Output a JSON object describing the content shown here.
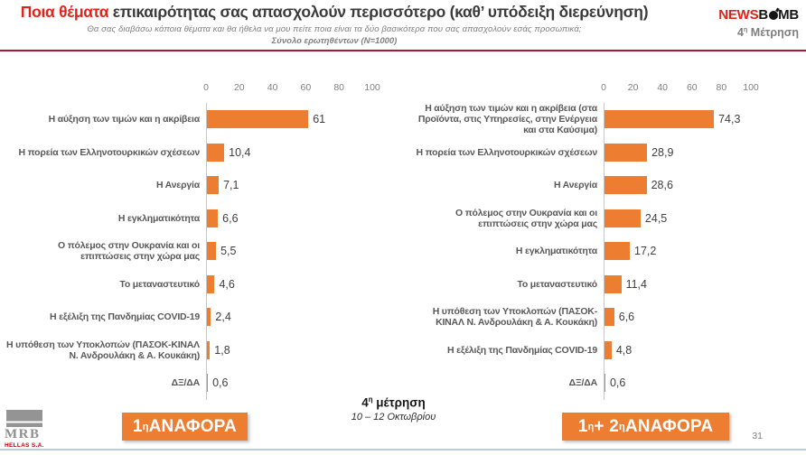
{
  "header": {
    "title": {
      "highlight": "Ποια θέματα",
      "rest": " επικαιρότητας σας απασχολούν περισσότερο (καθ’ υπόδειξη διερεύνηση)"
    },
    "subtitle": "Θα σας διαβάσω κάποια θέματα και θα ήθελα να μου πείτε ποια είναι τα δύο βασικότερα που σας απασχολούν  εσάς προσωπικά;",
    "sample_note": "Σύνολο ερωτηθέντων (N=1000)",
    "logo": {
      "news": "NEWS",
      "b": "B",
      "mb": "MB"
    },
    "measurement": {
      "num": "4",
      "sup": "η",
      "rest": " Μέτρηση"
    }
  },
  "chart_data": [
    {
      "type": "bar",
      "orientation": "horizontal",
      "title": "1η ΑΝΑΦΟΡΑ",
      "categories": [
        "Η αύξηση των τιμών και  η ακρίβεια",
        "Η πορεία των Ελληνοτουρκικών σχέσεων",
        "Η Ανεργία",
        "Η εγκληματικότητα",
        "Ο πόλεμος στην Ουκρανία και οι επιπτώσεις στην χώρα μας",
        "Το μεταναστευτικό",
        "Η εξέλιξη της Πανδημίας COVID-19",
        "Η υπόθεση των Υποκλοπών (ΠΑΣΟΚ-ΚΙΝΑΛ Ν. Ανδρουλάκη & Α. Κουκάκη)",
        "ΔΞ/ΔΑ"
      ],
      "values": [
        61,
        10.4,
        7.1,
        6.6,
        5.5,
        4.6,
        2.4,
        1.8,
        0.6
      ],
      "value_labels": [
        "61",
        "10,4",
        "7,1",
        "6,6",
        "5,5",
        "4,6",
        "2,4",
        "1,8",
        "0,6"
      ],
      "xlim": [
        0,
        100
      ],
      "ticks": [
        "0",
        "20",
        "40",
        "60",
        "80",
        "100"
      ],
      "xlabel": "",
      "ylabel": "",
      "grid": false,
      "legend": false,
      "bar_color": "#ED7D31"
    },
    {
      "type": "bar",
      "orientation": "horizontal",
      "title": "1η + 2η ΑΝΑΦΟΡΑ",
      "categories": [
        "Η αύξηση των τιμών και  η ακρίβεια  (στα Προϊόντα, στις Υπηρεσίες, στην Ενέργεια και στα Καύσιμα)",
        "Η πορεία των Ελληνοτουρκικών σχέσεων",
        "Η Ανεργία",
        "Ο πόλεμος στην Ουκρανία και οι επιπτώσεις στην χώρα μας",
        "Η εγκληματικότητα",
        "Το μεταναστευτικό",
        "Η υπόθεση των Υποκλοπών (ΠΑΣΟΚ-ΚΙΝΑΛ Ν. Ανδρουλάκη & Α. Κουκάκη)",
        "Η εξέλιξη της Πανδημίας COVID-19",
        "ΔΞ/ΔΑ"
      ],
      "values": [
        74.3,
        28.9,
        28.6,
        24.5,
        17.2,
        11.4,
        6.6,
        4.8,
        0.6
      ],
      "value_labels": [
        "74,3",
        "28,9",
        "28,6",
        "24,5",
        "17,2",
        "11,4",
        "6,6",
        "4,8",
        "0,6"
      ],
      "xlim": [
        0,
        100
      ],
      "ticks": [
        "0",
        "20",
        "40",
        "60",
        "80",
        "100"
      ],
      "xlabel": "",
      "ylabel": "",
      "grid": false,
      "legend": false,
      "bar_color": "#ED7D31"
    }
  ],
  "footer": {
    "mrb_logo": {
      "name": "MRB",
      "sub": "HELLAS S.A."
    },
    "left_button": {
      "n1": "1",
      "s1": "η",
      "rest": " ΑΝΑΦΟΡΑ"
    },
    "right_button": {
      "n1": "1",
      "s1": "η",
      "mid": " + 2",
      "s2": "η",
      "rest": " ΑΝΑΦΟΡΑ"
    },
    "measurement_title": {
      "num": "4",
      "sup": "η",
      "rest": " μέτρηση"
    },
    "measurement_dates": "10 – 12 Οκτωβρίου",
    "page_number": "31"
  },
  "colors": {
    "bar_orange": "#ED7D31",
    "title_red": "#E2231A",
    "header_divider_red": "#9E1B32",
    "footer_divider_blue": "#B9CDE5",
    "label_gray": "#595959",
    "mrb_red": "#C00000"
  }
}
